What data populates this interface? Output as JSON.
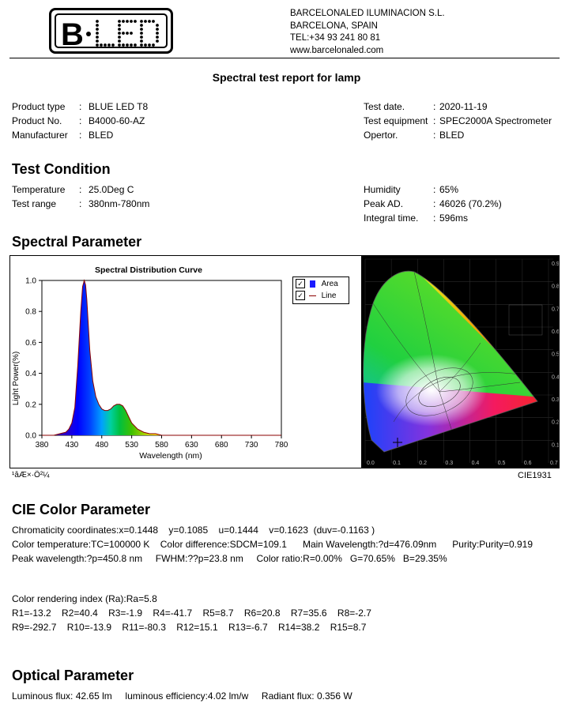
{
  "header": {
    "logo_text": "B·LED",
    "company_lines": [
      "BARCELONALED ILUMINACION S.L.",
      "BARCELONA, SPAIN",
      "TEL:+34 93 241 80 81",
      "www.barcelonaled.com"
    ]
  },
  "title": "Spectral test report for lamp",
  "product": {
    "left": [
      {
        "label": "Product type",
        "value": "BLUE LED T8"
      },
      {
        "label": "Product  No.",
        "value": "B4000-60-AZ"
      },
      {
        "label": "Manufacturer",
        "value": "BLED"
      }
    ],
    "right": [
      {
        "label": "Test date.",
        "value": "2020-11-19"
      },
      {
        "label": "Test equipment",
        "value": "SPEC2000A Spectrometer"
      },
      {
        "label": "Opertor.",
        "value": "BLED"
      }
    ]
  },
  "test_condition": {
    "heading": "Test Condition",
    "left": [
      {
        "label": "Temperature",
        "value": "25.0Deg C"
      },
      {
        "label": "Test range",
        "value": "380nm-780nm"
      }
    ],
    "right": [
      {
        "label": "Humidity",
        "value": "65%"
      },
      {
        "label": "Peak AD.",
        "value": "46026 (70.2%)"
      },
      {
        "label": "Integral  time.",
        "value": "596ms"
      }
    ]
  },
  "spectral": {
    "heading": "Spectral Parameter",
    "legend": [
      "Area",
      "Line"
    ],
    "caption_left": "¹âÆ×·Ö²¼",
    "caption_right": "CIE1931"
  },
  "chart_data": {
    "type": "area",
    "title": "Spectral Distribution Curve",
    "xlabel": "Wavelength  (nm)",
    "ylabel": "Light Power(%)",
    "xlim": [
      380,
      780
    ],
    "ylim": [
      0,
      1.0
    ],
    "x_ticks": [
      "380",
      "430",
      "480",
      "530",
      "580",
      "630",
      "680",
      "730",
      "780"
    ],
    "y_ticks": [
      "0.0",
      "0.2",
      "0.4",
      "0.6",
      "0.8",
      "1.0"
    ],
    "x": [
      380,
      400,
      410,
      420,
      425,
      430,
      435,
      440,
      445,
      448,
      450.8,
      453,
      455,
      460,
      465,
      470,
      475,
      480,
      485,
      490,
      495,
      500,
      505,
      510,
      515,
      520,
      525,
      530,
      540,
      550,
      560,
      570,
      580,
      600,
      650,
      700,
      780
    ],
    "y": [
      0.0,
      0.0,
      0.01,
      0.02,
      0.04,
      0.08,
      0.18,
      0.45,
      0.8,
      0.96,
      1.0,
      0.97,
      0.88,
      0.55,
      0.35,
      0.25,
      0.2,
      0.17,
      0.16,
      0.16,
      0.17,
      0.19,
      0.2,
      0.2,
      0.19,
      0.16,
      0.12,
      0.08,
      0.04,
      0.02,
      0.01,
      0.01,
      0.0,
      0.0,
      0.0,
      0.0,
      0.0
    ],
    "grid": false
  },
  "cie_color": {
    "heading": "CIE Color Parameter",
    "lines": [
      "Chromaticity coordinates:x=0.1448    y=0.1085    u=0.1444    v=0.1623  (duv=-0.1163 )",
      "Color temperature:TC=100000 K    Color difference:SDCM=109.1      Main Wavelength:?d=476.09nm      Purity:Purity=0.919",
      "Peak wavelength:?p=450.8 nm     FWHM:??p=23.8 nm     Color ratio:R=0.00%   G=70.65%   B=29.35%"
    ],
    "cri_lines": [
      "Color rendering index (Ra):Ra=5.8",
      "R1=-13.2    R2=40.4    R3=-1.9    R4=-41.7    R5=8.7    R6=20.8    R7=35.6    R8=-2.7",
      "R9=-292.7    R10=-13.9    R11=-80.3    R12=15.1    R13=-6.7    R14=38.2    R15=8.7"
    ]
  },
  "optical": {
    "heading": "Optical Parameter",
    "line": "Luminous flux: 42.65 lm     luminous efficiency:4.02 lm/w     Radiant flux: 0.356 W"
  },
  "cie_axis": {
    "x_ticks": [
      "0.0",
      "0.1",
      "0.2",
      "0.3",
      "0.4",
      "0.5",
      "0.6",
      "0.7"
    ],
    "y_ticks": [
      "0.9",
      "0.8",
      "0.7",
      "0.6",
      "0.5",
      "0.4",
      "0.3",
      "0.2",
      "0.1"
    ]
  },
  "colors": {
    "spectrum_line": "#8b0000",
    "legend_area": "#1a1aff"
  }
}
